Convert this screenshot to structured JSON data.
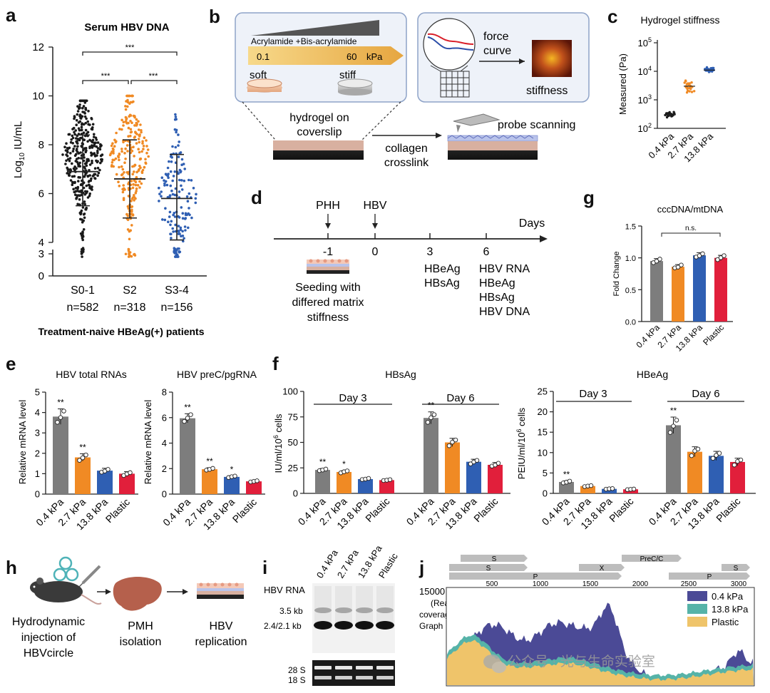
{
  "panels": {
    "a": "a",
    "b": "b",
    "c": "c",
    "d": "d",
    "e": "e",
    "f": "f",
    "g": "g",
    "h": "h",
    "i": "i",
    "j": "j"
  },
  "a": {
    "title": "Serum HBV DNA",
    "ylabel_main": "Log",
    "ylabel_sub": "10",
    "ylabel_unit": " IU/mL",
    "yticks": [
      "12",
      "10",
      "8",
      "6",
      "4",
      "3",
      "0"
    ],
    "groups": [
      {
        "name": "S0-1",
        "n": "n=582",
        "color": "#1a1a1a",
        "mean": 7.6,
        "sd_low": 5.5,
        "sd_high": 8.4,
        "median": 6.9
      },
      {
        "name": "S2",
        "n": "n=318",
        "color": "#f08a24",
        "mean": 7.5,
        "sd_low": 5.0,
        "sd_high": 8.2,
        "median": 6.6
      },
      {
        "name": "S3-4",
        "n": "n=156",
        "color": "#2f5fb3",
        "mean": 5.8,
        "sd_low": 4.1,
        "sd_high": 7.6,
        "median": 5.8
      }
    ],
    "sig": [
      "***",
      "***",
      "***"
    ],
    "footer": "Treatment-naive HBeAg(+) patients"
  },
  "b": {
    "gradient_label": "Acrylamide +Bis-acrylamide",
    "min": "0.1",
    "max": "60",
    "unit": "kPa",
    "soft": "soft",
    "stiff": "stiff",
    "force_curve": [
      "force",
      "curve"
    ],
    "stiffness": "stiffness",
    "hydrogel": [
      "hydrogel on",
      "coverslip"
    ],
    "collagen": [
      "collagen",
      "crosslink"
    ],
    "probe": "probe scanning"
  },
  "c": {
    "title": "Hydrogel stiffness",
    "ylabel": "Measured (Pa)",
    "yticks": [
      "5",
      "4",
      "3",
      "2"
    ],
    "ytick_base": "10",
    "categories": [
      "0.4 kPa",
      "2.7 kPa",
      "13.8 kPa"
    ],
    "values_pa": [
      300,
      3000,
      11000
    ],
    "colors": [
      "#1a1a1a",
      "#f08a24",
      "#2f5fb3"
    ]
  },
  "d": {
    "events": [
      {
        "label": "PHH",
        "day": "-1"
      },
      {
        "label": "HBV",
        "day": "0"
      }
    ],
    "days_label": "Days",
    "tick3": "3",
    "tick6": "6",
    "day3_items": [
      "HBeAg",
      "HBsAg"
    ],
    "day6_items": [
      "HBV RNA",
      "HBeAg",
      "HBsAg",
      "HBV DNA"
    ],
    "seeding": [
      "Seeding with",
      "differed matrix",
      "stiffness"
    ]
  },
  "g": {
    "title": "cccDNA/mtDNA",
    "ylabel": "Fold Change",
    "yticks": [
      "1.5",
      "1.0",
      "0.5",
      "0.0"
    ],
    "categories": [
      "0.4 kPa",
      "2.7 kPa",
      "13.8 kPa",
      "Plastic"
    ],
    "values": [
      0.95,
      0.86,
      1.04,
      1.0
    ],
    "sig": "n.s."
  },
  "e": {
    "left_title": "HBV total RNAs",
    "right_title": "HBV preC/pgRNA",
    "ylabel": "Relative mRNA level",
    "left_yticks": [
      "5",
      "4",
      "3",
      "2",
      "1",
      "0"
    ],
    "right_yticks": [
      "8",
      "6",
      "4",
      "2",
      "0"
    ],
    "categories": [
      "0.4 kPa",
      "2.7 kPa",
      "13.8 kPa",
      "Plastic"
    ],
    "left_values": [
      3.8,
      1.8,
      1.15,
      1.0
    ],
    "right_values": [
      5.95,
      1.95,
      1.35,
      1.0
    ],
    "left_sig": [
      "**",
      "**",
      "",
      ""
    ],
    "right_sig": [
      "**",
      "**",
      "*",
      ""
    ]
  },
  "f": {
    "left_title": "HBsAg",
    "right_title": "HBeAg",
    "left_ylabel_main": "IU/ml/10",
    "left_ylabel_sup": "6",
    "left_ylabel_end": " cells",
    "right_ylabel_main": "PEIU/ml/10",
    "right_ylabel_sup": "6",
    "right_ylabel_end": " cells",
    "day3": "Day 3",
    "day6": "Day 6",
    "left_yticks": [
      "100",
      "75",
      "50",
      "25",
      "0"
    ],
    "right_yticks": [
      "25",
      "20",
      "15",
      "10",
      "5",
      "0"
    ],
    "categories": [
      "0.4 kPa",
      "2.7 kPa",
      "13.8 kPa",
      "Plastic"
    ],
    "hbsag_d3": [
      23,
      21,
      14,
      13
    ],
    "hbsag_d6": [
      74,
      50,
      31,
      28
    ],
    "hbeag_d3": [
      2.8,
      1.8,
      1.1,
      1.0
    ],
    "hbeag_d6": [
      16.7,
      10.2,
      9.2,
      7.7
    ],
    "hbsag_d3_sig": [
      "**",
      "*",
      "",
      ""
    ],
    "hbsag_d6_sig": [
      "**",
      "",
      "",
      ""
    ],
    "hbeag_d3_sig": [
      "**",
      "",
      "",
      ""
    ],
    "hbeag_d6_sig": [
      "**",
      "",
      "",
      ""
    ]
  },
  "h": {
    "injection": [
      "Hydrodynamic",
      "injection of",
      "HBVcircle"
    ],
    "pmh": [
      "PMH",
      "isolation"
    ],
    "replication": [
      "HBV",
      "replication"
    ]
  },
  "i": {
    "lanes": [
      "0.4 kPa",
      "2.7 kPa",
      "13.8 kPa",
      "Plastic"
    ],
    "hbv_rna": "HBV RNA",
    "band1": "3.5 kb",
    "band2": "2.4/2.1 kb",
    "rrna1": "28 S",
    "rrna2": "18 S"
  },
  "j": {
    "genes": [
      "S",
      "S",
      "P",
      "X",
      "PreC/C",
      "P",
      "S"
    ],
    "positions": [
      "500",
      "1000",
      "1500",
      "2000",
      "2500",
      "3000"
    ],
    "ymax": "15000",
    "ylabel": [
      "(Read",
      "coverage)",
      "Graph"
    ],
    "legend": [
      {
        "name": "0.4 kPa",
        "color": "#4b4a96"
      },
      {
        "name": "13.8 kPa",
        "color": "#56b3a8"
      },
      {
        "name": "Plastic",
        "color": "#efc46a"
      }
    ],
    "watermark": "公众号 · 光与生命实验室"
  }
}
